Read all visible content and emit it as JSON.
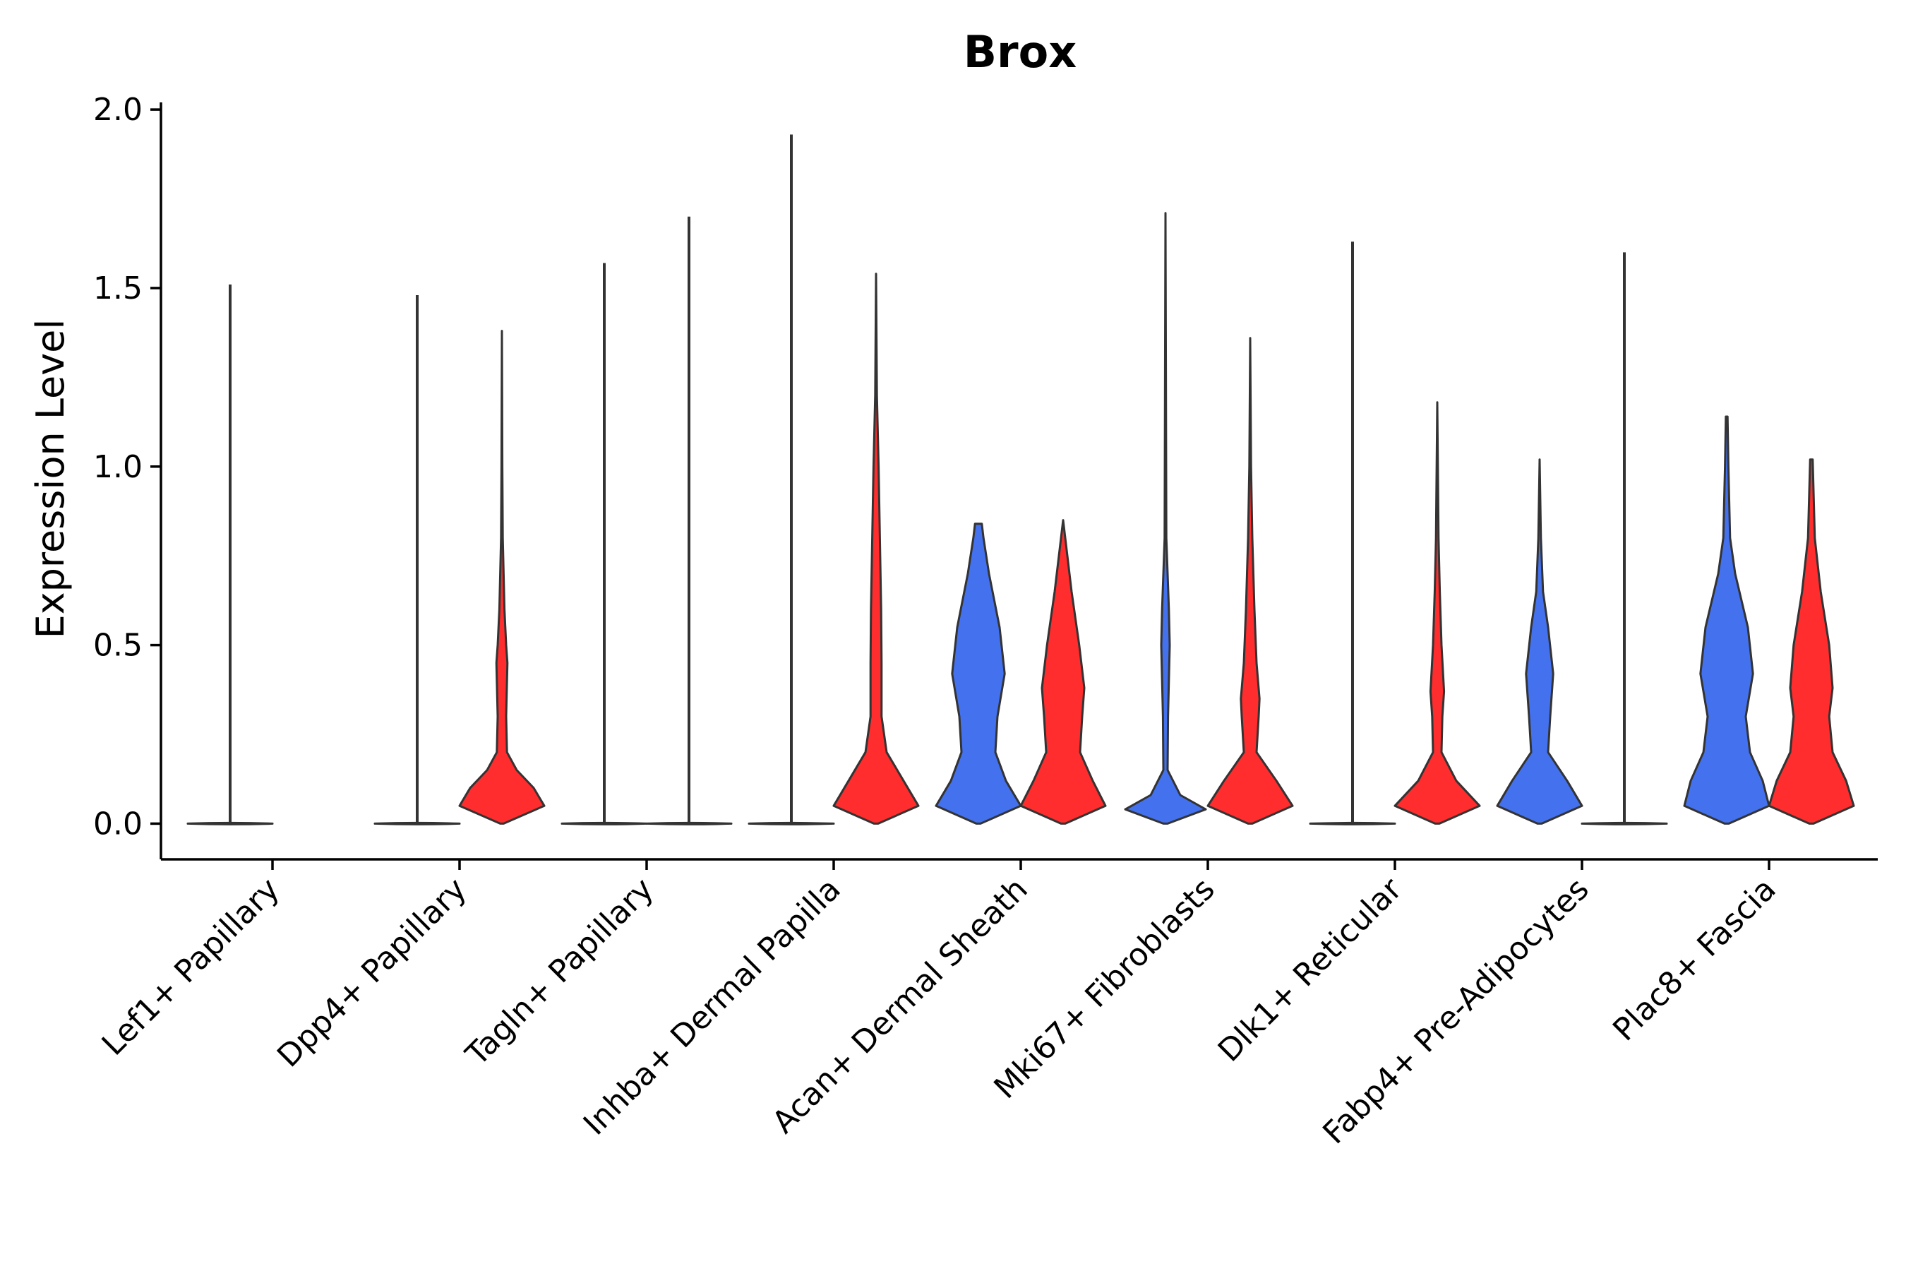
{
  "chart_data": {
    "type": "violin",
    "title": "Brox",
    "xlabel": "",
    "ylabel": "Expression Level",
    "ylim": [
      -0.1,
      2.02
    ],
    "yticks": [
      "0.0",
      "0.5",
      "1.0",
      "1.5",
      "2.0"
    ],
    "grid": false,
    "legend": "none",
    "colors": {
      "blue_group": "#4472EE",
      "red_group": "#FF2D2D",
      "outline": "#333333"
    },
    "categories": [
      "Lef1+ Papillary",
      "Dpp4+ Papillary",
      "Tagln+ Papillary",
      "Inhba+ Dermal Papilla",
      "Acan+ Dermal Sheath",
      "Mki67+ Fibroblasts",
      "Dlk1+ Reticular",
      "Fabp4+ Pre-Adipocytes",
      "Plac8+ Fascia"
    ],
    "groups": [
      [
        {
          "color": "blue",
          "max": 1.51,
          "profile": []
        },
        {
          "color": "red",
          "max": 0.0,
          "profile": []
        }
      ],
      [
        {
          "color": "blue",
          "max": 1.48,
          "profile": []
        },
        {
          "color": "red",
          "max": 1.38,
          "profile": [
            [
              0,
              0.04
            ],
            [
              0.05,
              1.0
            ],
            [
              0.1,
              0.75
            ],
            [
              0.15,
              0.35
            ],
            [
              0.2,
              0.12
            ],
            [
              0.3,
              0.1
            ],
            [
              0.4,
              0.12
            ],
            [
              0.45,
              0.13
            ],
            [
              0.5,
              0.1
            ],
            [
              0.6,
              0.06
            ],
            [
              0.8,
              0.02
            ],
            [
              1.0,
              0.01
            ],
            [
              1.38,
              0
            ]
          ]
        }
      ],
      [
        {
          "color": "blue",
          "max": 1.57,
          "profile": []
        },
        {
          "color": "red",
          "max": 1.7,
          "profile": []
        }
      ],
      [
        {
          "color": "blue",
          "max": 1.93,
          "profile": []
        },
        {
          "color": "red",
          "max": 1.54,
          "profile": [
            [
              0,
              0.05
            ],
            [
              0.05,
              1.0
            ],
            [
              0.12,
              0.65
            ],
            [
              0.2,
              0.25
            ],
            [
              0.3,
              0.13
            ],
            [
              0.45,
              0.13
            ],
            [
              0.6,
              0.12
            ],
            [
              0.8,
              0.09
            ],
            [
              1.0,
              0.06
            ],
            [
              1.2,
              0.02
            ],
            [
              1.54,
              0
            ]
          ]
        }
      ],
      [
        {
          "color": "blue",
          "max": 0.84,
          "profile": [
            [
              0,
              0.05
            ],
            [
              0.05,
              1.0
            ],
            [
              0.12,
              0.65
            ],
            [
              0.2,
              0.4
            ],
            [
              0.3,
              0.45
            ],
            [
              0.42,
              0.62
            ],
            [
              0.55,
              0.5
            ],
            [
              0.7,
              0.25
            ],
            [
              0.8,
              0.12
            ],
            [
              0.84,
              0.08
            ]
          ]
        },
        {
          "color": "red",
          "max": 0.85,
          "profile": [
            [
              0,
              0.05
            ],
            [
              0.05,
              1.0
            ],
            [
              0.12,
              0.7
            ],
            [
              0.2,
              0.4
            ],
            [
              0.3,
              0.45
            ],
            [
              0.38,
              0.5
            ],
            [
              0.5,
              0.38
            ],
            [
              0.65,
              0.2
            ],
            [
              0.78,
              0.07
            ],
            [
              0.85,
              0
            ]
          ]
        }
      ],
      [
        {
          "color": "blue",
          "max": 1.71,
          "profile": [
            [
              0,
              0.05
            ],
            [
              0.04,
              0.95
            ],
            [
              0.08,
              0.35
            ],
            [
              0.15,
              0.05
            ],
            [
              0.3,
              0.06
            ],
            [
              0.5,
              0.1
            ],
            [
              0.6,
              0.08
            ],
            [
              0.8,
              0.02
            ],
            [
              1.71,
              0
            ]
          ]
        },
        {
          "color": "red",
          "max": 1.36,
          "profile": [
            [
              0,
              0.05
            ],
            [
              0.05,
              1.0
            ],
            [
              0.12,
              0.62
            ],
            [
              0.2,
              0.15
            ],
            [
              0.3,
              0.2
            ],
            [
              0.35,
              0.22
            ],
            [
              0.45,
              0.15
            ],
            [
              0.6,
              0.1
            ],
            [
              0.8,
              0.05
            ],
            [
              1.0,
              0.02
            ],
            [
              1.36,
              0
            ]
          ]
        }
      ],
      [
        {
          "color": "blue",
          "max": 1.63,
          "profile": []
        },
        {
          "color": "red",
          "max": 1.18,
          "profile": [
            [
              0,
              0.05
            ],
            [
              0.05,
              1.0
            ],
            [
              0.12,
              0.45
            ],
            [
              0.2,
              0.1
            ],
            [
              0.3,
              0.12
            ],
            [
              0.37,
              0.16
            ],
            [
              0.5,
              0.1
            ],
            [
              0.65,
              0.06
            ],
            [
              0.8,
              0.03
            ],
            [
              1.18,
              0
            ]
          ]
        }
      ],
      [
        {
          "color": "blue",
          "max": 1.02,
          "profile": [
            [
              0,
              0.05
            ],
            [
              0.05,
              1.0
            ],
            [
              0.12,
              0.65
            ],
            [
              0.2,
              0.2
            ],
            [
              0.3,
              0.25
            ],
            [
              0.42,
              0.32
            ],
            [
              0.55,
              0.2
            ],
            [
              0.65,
              0.08
            ],
            [
              0.8,
              0.03
            ],
            [
              1.02,
              0
            ]
          ]
        },
        {
          "color": "red",
          "max": 1.6,
          "profile": []
        }
      ],
      [
        {
          "color": "blue",
          "max": 1.14,
          "profile": [
            [
              0,
              0.05
            ],
            [
              0.05,
              1.0
            ],
            [
              0.12,
              0.85
            ],
            [
              0.2,
              0.55
            ],
            [
              0.3,
              0.45
            ],
            [
              0.42,
              0.62
            ],
            [
              0.55,
              0.5
            ],
            [
              0.7,
              0.2
            ],
            [
              0.8,
              0.08
            ],
            [
              1.0,
              0.04
            ],
            [
              1.14,
              0.02
            ]
          ]
        },
        {
          "color": "red",
          "max": 1.02,
          "profile": [
            [
              0,
              0.05
            ],
            [
              0.05,
              1.0
            ],
            [
              0.12,
              0.82
            ],
            [
              0.2,
              0.5
            ],
            [
              0.3,
              0.42
            ],
            [
              0.38,
              0.5
            ],
            [
              0.5,
              0.42
            ],
            [
              0.65,
              0.22
            ],
            [
              0.8,
              0.08
            ],
            [
              1.02,
              0.03
            ]
          ]
        }
      ]
    ]
  }
}
